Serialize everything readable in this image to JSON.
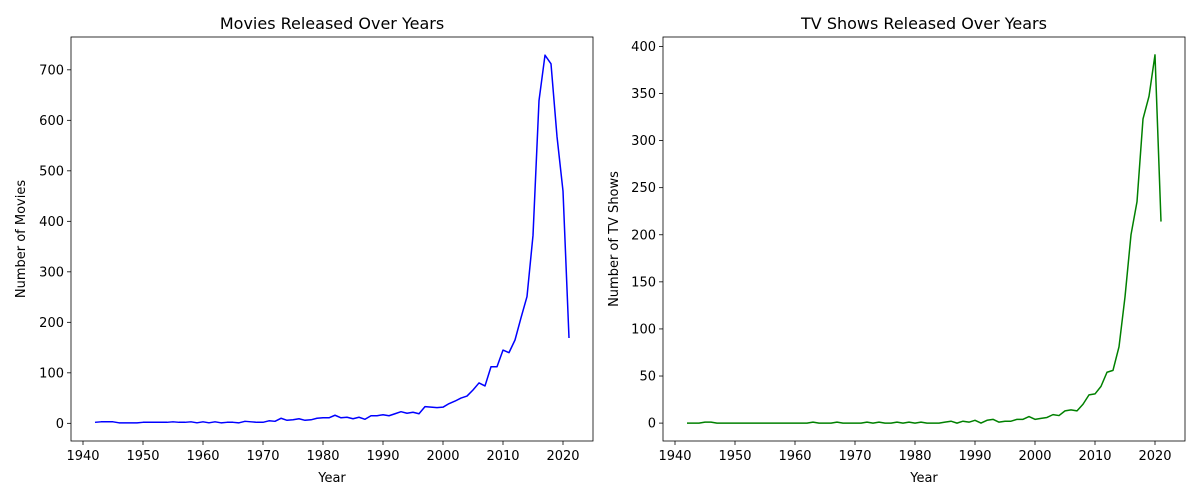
{
  "chart_data": [
    {
      "type": "line",
      "title": "Movies Released Over Years",
      "xlabel": "Year",
      "ylabel": "Number of Movies",
      "xlim": [
        1938,
        2025
      ],
      "ylim": [
        -35,
        765
      ],
      "xticks": [
        1940,
        1950,
        1960,
        1970,
        1980,
        1990,
        2000,
        2010,
        2020
      ],
      "yticks": [
        0,
        100,
        200,
        300,
        400,
        500,
        600,
        700
      ],
      "grid": false,
      "legend": "none",
      "colors": {
        "line": "#0000ff"
      },
      "series": [
        {
          "x": [
            1942,
            1943,
            1944,
            1945,
            1946,
            1947,
            1948,
            1949,
            1950,
            1951,
            1952,
            1953,
            1954,
            1955,
            1956,
            1957,
            1958,
            1959,
            1960,
            1961,
            1962,
            1963,
            1964,
            1965,
            1966,
            1967,
            1968,
            1969,
            1970,
            1971,
            1972,
            1973,
            1974,
            1975,
            1976,
            1977,
            1978,
            1979,
            1980,
            1981,
            1982,
            1983,
            1984,
            1985,
            1986,
            1987,
            1988,
            1989,
            1990,
            1991,
            1992,
            1993,
            1994,
            1995,
            1996,
            1997,
            1998,
            1999,
            2000,
            2001,
            2002,
            2003,
            2004,
            2005,
            2006,
            2007,
            2008,
            2009,
            2010,
            2011,
            2012,
            2013,
            2014,
            2015,
            2016,
            2017,
            2018,
            2019,
            2020,
            2021
          ],
          "values": [
            2,
            3,
            3,
            3,
            1,
            1,
            1,
            1,
            2,
            2,
            2,
            2,
            2,
            3,
            2,
            2,
            3,
            1,
            3,
            1,
            3,
            1,
            2,
            2,
            1,
            4,
            3,
            2,
            2,
            5,
            4,
            10,
            6,
            7,
            9,
            6,
            7,
            10,
            11,
            11,
            16,
            11,
            12,
            9,
            12,
            8,
            15,
            15,
            17,
            15,
            19,
            23,
            20,
            22,
            19,
            33,
            32,
            31,
            32,
            39,
            44,
            50,
            54,
            66,
            80,
            74,
            112,
            112,
            145,
            140,
            165,
            209,
            251,
            372,
            639,
            729,
            712,
            568,
            460,
            169
          ]
        }
      ]
    },
    {
      "type": "line",
      "title": "TV Shows Released Over Years",
      "xlabel": "Year",
      "ylabel": "Number of TV Shows",
      "xlim": [
        1938,
        2025
      ],
      "ylim": [
        -19,
        410
      ],
      "xticks": [
        1940,
        1950,
        1960,
        1970,
        1980,
        1990,
        2000,
        2010,
        2020
      ],
      "yticks": [
        0,
        50,
        100,
        150,
        200,
        250,
        300,
        350,
        400
      ],
      "grid": false,
      "legend": "none",
      "colors": {
        "line": "#008000"
      },
      "series": [
        {
          "x": [
            1942,
            1943,
            1944,
            1945,
            1946,
            1947,
            1948,
            1949,
            1950,
            1951,
            1952,
            1953,
            1954,
            1955,
            1956,
            1957,
            1958,
            1959,
            1960,
            1961,
            1962,
            1963,
            1964,
            1965,
            1966,
            1967,
            1968,
            1969,
            1970,
            1971,
            1972,
            1973,
            1974,
            1975,
            1976,
            1977,
            1978,
            1979,
            1980,
            1981,
            1982,
            1983,
            1984,
            1985,
            1986,
            1987,
            1988,
            1989,
            1990,
            1991,
            1992,
            1993,
            1994,
            1995,
            1996,
            1997,
            1998,
            1999,
            2000,
            2001,
            2002,
            2003,
            2004,
            2005,
            2006,
            2007,
            2008,
            2009,
            2010,
            2011,
            2012,
            2013,
            2014,
            2015,
            2016,
            2017,
            2018,
            2019,
            2020,
            2021
          ],
          "values": [
            0,
            0,
            0,
            1,
            1,
            0,
            0,
            0,
            0,
            0,
            0,
            0,
            0,
            0,
            0,
            0,
            0,
            0,
            0,
            0,
            0,
            1,
            0,
            0,
            0,
            1,
            0,
            0,
            0,
            0,
            1,
            0,
            1,
            0,
            0,
            1,
            0,
            1,
            0,
            1,
            0,
            0,
            0,
            1,
            2,
            0,
            2,
            1,
            3,
            0,
            3,
            4,
            1,
            2,
            2,
            4,
            4,
            7,
            4,
            5,
            6,
            9,
            8,
            13,
            14,
            13,
            20,
            30,
            31,
            39,
            54,
            56,
            81,
            134,
            200,
            235,
            323,
            347,
            391,
            214
          ]
        }
      ]
    }
  ]
}
